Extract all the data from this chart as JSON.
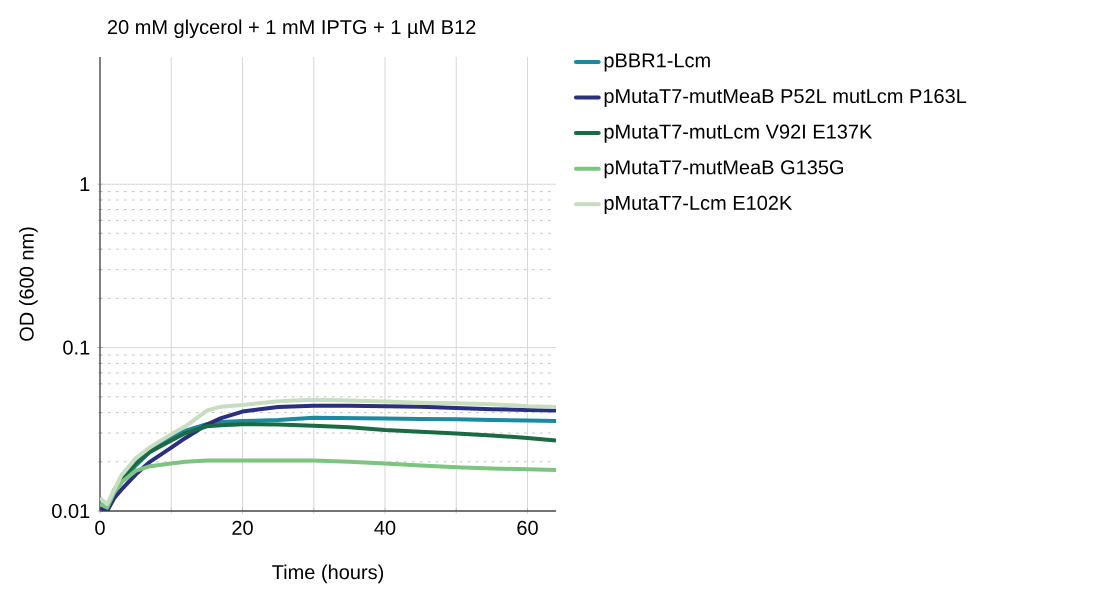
{
  "chart_data": {
    "type": "line",
    "title": "20 mM glycerol + 1 mM IPTG + 1 µM B12",
    "xlabel": "Time (hours)",
    "ylabel": "OD (600 nm)",
    "log": "y",
    "xlim": [
      0,
      64
    ],
    "ylim": [
      0.01,
      6
    ],
    "xticks": [
      0,
      {
        "value": 10,
        "label": null
      },
      20,
      {
        "value": 30,
        "label": null
      },
      40,
      {
        "value": 50,
        "label": null
      },
      60
    ],
    "yticks": [
      0.01,
      0.1,
      1
    ],
    "grid": true,
    "legend": "right",
    "marker": "none",
    "line_style": "solid",
    "x": [
      0,
      1,
      2,
      3,
      5,
      7,
      10,
      12,
      15,
      17,
      20,
      25,
      30,
      35,
      40,
      45,
      50,
      55,
      60,
      64
    ],
    "series": [
      {
        "name": "pBBR1-Lcm",
        "color": "#1a8a9e",
        "values": [
          0.011,
          0.0105,
          0.013,
          0.015,
          0.019,
          0.023,
          0.0283,
          0.031,
          0.034,
          0.035,
          0.0355,
          0.036,
          0.0372,
          0.037,
          0.0368,
          0.0366,
          0.0364,
          0.036,
          0.0358,
          0.0355
        ]
      },
      {
        "name": "pMutaT7-mutMeaB P52L mutLcm P163L",
        "color": "#2a2f7f",
        "values": [
          0.0105,
          0.01,
          0.012,
          0.0135,
          0.0167,
          0.02,
          0.0244,
          0.028,
          0.0338,
          0.037,
          0.0406,
          0.0433,
          0.044,
          0.044,
          0.0438,
          0.0435,
          0.0427,
          0.042,
          0.0415,
          0.0412
        ]
      },
      {
        "name": "pMutaT7-mutLcm V92I E137K",
        "color": "#1a6b45",
        "values": [
          0.011,
          0.0105,
          0.0135,
          0.0155,
          0.0195,
          0.023,
          0.027,
          0.03,
          0.033,
          0.0335,
          0.034,
          0.0338,
          0.0332,
          0.0325,
          0.0313,
          0.0305,
          0.0298,
          0.029,
          0.028,
          0.027
        ]
      },
      {
        "name": "pMutaT7-mutMeaB G135G",
        "color": "#7cc47f",
        "values": [
          0.011,
          0.0105,
          0.013,
          0.015,
          0.0176,
          0.0188,
          0.0195,
          0.02,
          0.0204,
          0.0204,
          0.0204,
          0.0204,
          0.0204,
          0.02,
          0.0195,
          0.019,
          0.0185,
          0.0182,
          0.018,
          0.0178
        ]
      },
      {
        "name": "pMutaT7-Lcm E102K",
        "color": "#c8dcc0",
        "values": [
          0.012,
          0.011,
          0.0135,
          0.0165,
          0.021,
          0.0245,
          0.0295,
          0.033,
          0.0412,
          0.0435,
          0.0445,
          0.047,
          0.0479,
          0.0475,
          0.0467,
          0.046,
          0.0456,
          0.045,
          0.0438,
          0.0433
        ]
      }
    ]
  }
}
